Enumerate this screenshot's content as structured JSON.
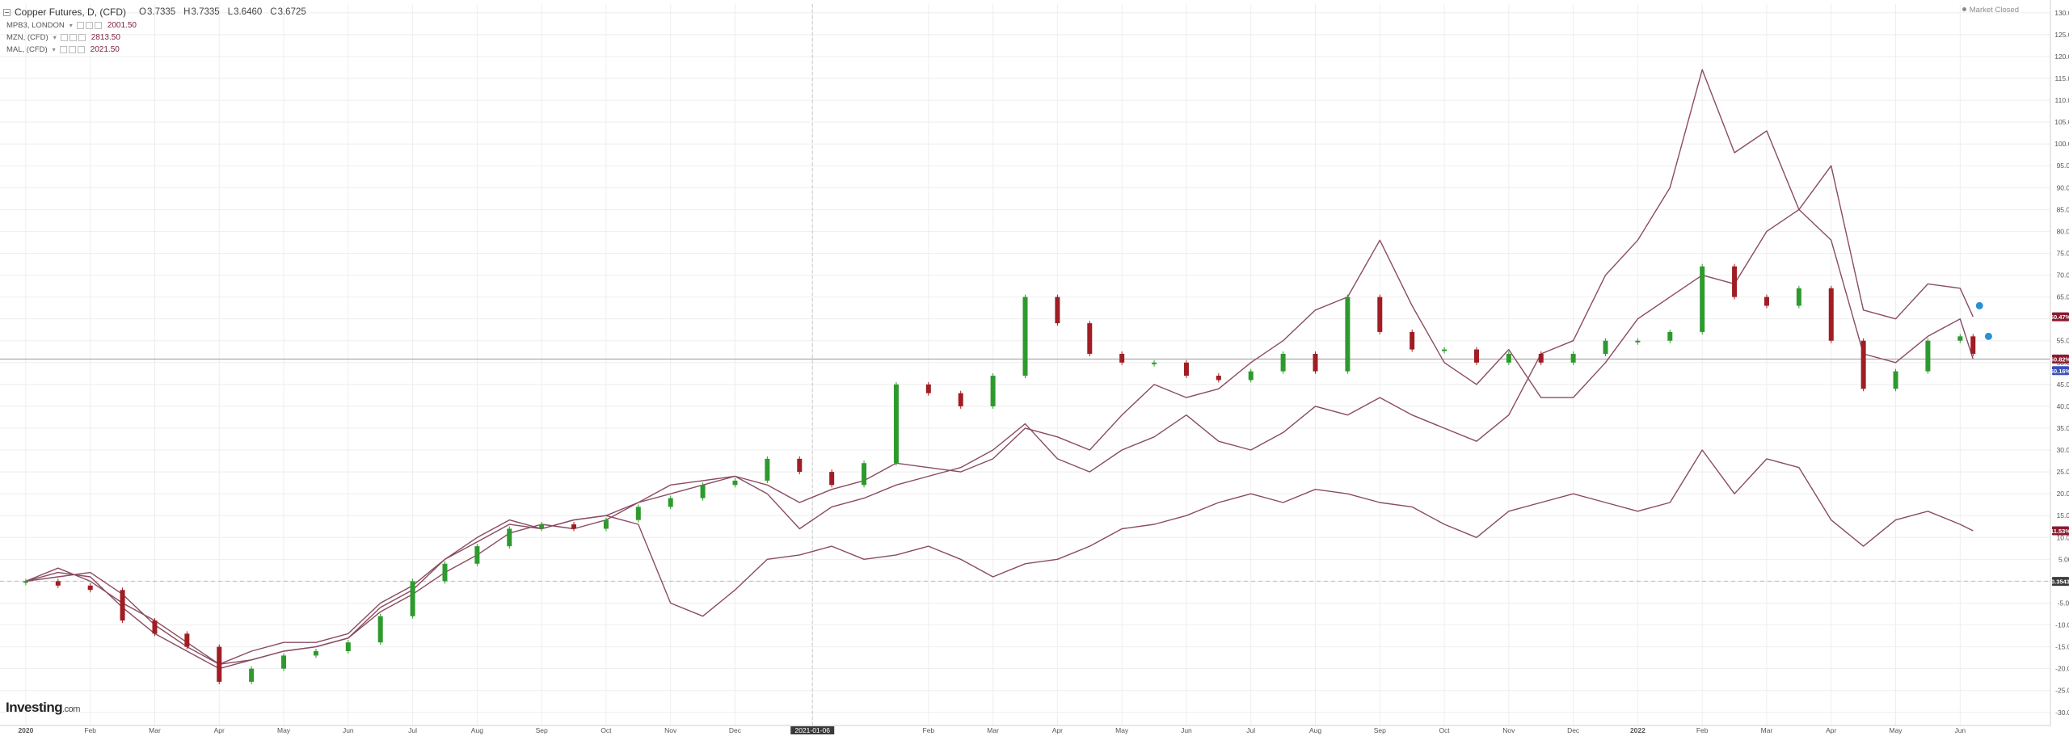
{
  "header": {
    "title": "Copper Futures, D, (CFD)",
    "open_label": "O",
    "open": "3.7335",
    "high_label": "H",
    "high": "3.7335",
    "low_label": "L",
    "low": "3.6460",
    "close_label": "C",
    "close": "3.6725"
  },
  "market_status": "Market Closed",
  "symbols": [
    {
      "name": "MPB3, LONDON",
      "value": "2001.50"
    },
    {
      "name": "MZN, (CFD)",
      "value": "2813.50"
    },
    {
      "name": "MAL, (CFD)",
      "value": "2021.50"
    }
  ],
  "brand": {
    "main": "Investing",
    "suffix": ".com"
  },
  "colors": {
    "up": "#2e9a2e",
    "down": "#a01d24",
    "comparison": "#8a4b62",
    "grid": "#eeeeee",
    "axis_text": "#555555",
    "badge_red": "#8b1a2f",
    "badge_blue": "#3b4fbd",
    "badge_dark": "#3a3a3a",
    "marker": "#2b8fd6"
  },
  "chart_data": {
    "type": "line",
    "title": "Copper Futures, D, (CFD)",
    "y_unit": "percent change",
    "ylim": [
      -33,
      132
    ],
    "y_ticks": [
      "130.00%",
      "125.00%",
      "120.00%",
      "115.00%",
      "110.00%",
      "105.00%",
      "100.00%",
      "95.00%",
      "90.00%",
      "85.00%",
      "80.00%",
      "75.00%",
      "70.00%",
      "65.00%",
      "60.00%",
      "55.00%",
      "50.00%",
      "45.00%",
      "40.00%",
      "35.00%",
      "30.00%",
      "25.00%",
      "20.00%",
      "15.00%",
      "10.00%",
      "5.00%",
      "0.00%",
      "-5.00%",
      "-10.00%",
      "-15.00%",
      "-20.00%",
      "-25.00%",
      "-30.00%"
    ],
    "x_ticks": [
      "2020",
      "Feb",
      "Mar",
      "Apr",
      "May",
      "Jun",
      "Jul",
      "Aug",
      "Sep",
      "Oct",
      "Nov",
      "Dec",
      "2021-01-06",
      "Feb",
      "Mar",
      "Apr",
      "May",
      "Jun",
      "Jul",
      "Aug",
      "Sep",
      "Oct",
      "Nov",
      "Dec",
      "2022",
      "Feb",
      "Mar",
      "Apr",
      "May",
      "Jun"
    ],
    "x_tick_positions": [
      0,
      0.5,
      1,
      1.5,
      2,
      2.5,
      3,
      3.5,
      4,
      4.5,
      5,
      5.5,
      6.1,
      7,
      7.5,
      8,
      8.5,
      9,
      9.5,
      10,
      10.5,
      11,
      11.5,
      12,
      12.5,
      13,
      13.5,
      14,
      14.5,
      15
    ],
    "xlim": [
      -0.2,
      15.7
    ],
    "grid": true,
    "crosshair_x_label": "2021-01-06",
    "right_badges": [
      {
        "value": 60.47,
        "label": "60.47%",
        "color": "#8b1a2f"
      },
      {
        "value": 50.82,
        "label": "50.82%",
        "color": "#8b1a2f"
      },
      {
        "value": 48.16,
        "label": "50.16%",
        "color": "#3b4fbd"
      },
      {
        "value": 11.53,
        "label": "11.53%",
        "color": "#8b1a2f"
      },
      {
        "value": -0.05,
        "label": "0.3543",
        "color": "#3a3a3a"
      }
    ],
    "reference_line": 50.82,
    "zero_line": 0,
    "candles": {
      "name": "Copper Futures",
      "x": [
        0,
        0.25,
        0.5,
        0.75,
        1,
        1.25,
        1.5,
        1.75,
        2,
        2.25,
        2.5,
        2.75,
        3,
        3.25,
        3.5,
        3.75,
        4,
        4.25,
        4.5,
        4.75,
        5,
        5.25,
        5.5,
        5.75,
        6,
        6.25,
        6.5,
        6.75,
        7,
        7.25,
        7.5,
        7.75,
        8,
        8.25,
        8.5,
        8.75,
        9,
        9.25,
        9.5,
        9.75,
        10,
        10.25,
        10.5,
        10.75,
        11,
        11.25,
        11.5,
        11.75,
        12,
        12.25,
        12.5,
        12.75,
        13,
        13.25,
        13.5,
        13.75,
        14,
        14.25,
        14.5,
        14.75,
        15,
        15.1
      ],
      "y": [
        0,
        -1,
        -2,
        -9,
        -12,
        -15,
        -23,
        -20,
        -17,
        -16,
        -14,
        -8,
        0,
        4,
        8,
        12,
        13,
        12,
        14,
        17,
        19,
        22,
        23,
        28,
        25,
        22,
        27,
        45,
        43,
        40,
        47,
        65,
        59,
        52,
        50,
        50,
        47,
        46,
        48,
        52,
        48,
        65,
        57,
        53,
        53,
        50,
        52,
        50,
        52,
        55,
        55,
        57,
        72,
        65,
        63,
        67,
        55,
        44,
        48,
        55,
        56,
        52
      ]
    },
    "series": [
      {
        "name": "MPB3, LONDON",
        "x": [
          0,
          0.25,
          0.5,
          0.75,
          1,
          1.25,
          1.5,
          1.75,
          2,
          2.25,
          2.5,
          2.75,
          3,
          3.25,
          3.5,
          3.75,
          4,
          4.25,
          4.5,
          4.75,
          5,
          5.25,
          5.5,
          5.75,
          6,
          6.25,
          6.5,
          6.75,
          7,
          7.25,
          7.5,
          7.75,
          8,
          8.25,
          8.5,
          8.75,
          9,
          9.25,
          9.5,
          9.75,
          10,
          10.25,
          10.5,
          10.75,
          11,
          11.25,
          11.5,
          11.75,
          12,
          12.25,
          12.5,
          12.75,
          13,
          13.25,
          13.5,
          13.75,
          14,
          14.25,
          14.5,
          14.75,
          15,
          15.1
        ],
        "y": [
          0,
          2,
          1,
          -6,
          -12,
          -16,
          -20,
          -18,
          -16,
          -15,
          -13,
          -6,
          -2,
          5,
          10,
          14,
          12,
          14,
          15,
          13,
          -5,
          -8,
          -2,
          5,
          6,
          8,
          5,
          6,
          8,
          5,
          1,
          4,
          5,
          8,
          12,
          13,
          15,
          18,
          20,
          18,
          21,
          20,
          18,
          17,
          13,
          10,
          16,
          18,
          20,
          18,
          16,
          18,
          30,
          20,
          28,
          26,
          14,
          8,
          14,
          16,
          13,
          11.53
        ]
      },
      {
        "name": "MZN, (CFD)",
        "x": [
          0,
          0.25,
          0.5,
          0.75,
          1,
          1.25,
          1.5,
          1.75,
          2,
          2.25,
          2.5,
          2.75,
          3,
          3.25,
          3.5,
          3.75,
          4,
          4.25,
          4.5,
          4.75,
          5,
          5.25,
          5.5,
          5.75,
          6,
          6.25,
          6.5,
          6.75,
          7,
          7.25,
          7.5,
          7.75,
          8,
          8.25,
          8.5,
          8.75,
          9,
          9.25,
          9.5,
          9.75,
          10,
          10.25,
          10.5,
          10.75,
          11,
          11.25,
          11.5,
          11.75,
          12,
          12.25,
          12.5,
          12.75,
          13,
          13.25,
          13.5,
          13.75,
          14,
          14.25,
          14.5,
          14.75,
          15,
          15.1
        ],
        "y": [
          0,
          3,
          0,
          -5,
          -9,
          -14,
          -19,
          -16,
          -14,
          -14,
          -12,
          -5,
          -1,
          5,
          9,
          13,
          12,
          14,
          15,
          18,
          20,
          22,
          24,
          20,
          12,
          17,
          19,
          22,
          24,
          26,
          30,
          36,
          28,
          25,
          30,
          33,
          38,
          32,
          30,
          34,
          40,
          38,
          42,
          38,
          35,
          32,
          38,
          52,
          55,
          70,
          78,
          90,
          117,
          98,
          103,
          85,
          95,
          62,
          60,
          68,
          67,
          60.47
        ]
      },
      {
        "name": "MAL, (CFD)",
        "x": [
          0,
          0.25,
          0.5,
          0.75,
          1,
          1.25,
          1.5,
          1.75,
          2,
          2.25,
          2.5,
          2.75,
          3,
          3.25,
          3.5,
          3.75,
          4,
          4.25,
          4.5,
          4.75,
          5,
          5.25,
          5.5,
          5.75,
          6,
          6.25,
          6.5,
          6.75,
          7,
          7.25,
          7.5,
          7.75,
          8,
          8.25,
          8.5,
          8.75,
          9,
          9.25,
          9.5,
          9.75,
          10,
          10.25,
          10.5,
          10.75,
          11,
          11.25,
          11.5,
          11.75,
          12,
          12.25,
          12.5,
          12.75,
          13,
          13.25,
          13.5,
          13.75,
          14,
          14.25,
          14.5,
          14.75,
          15,
          15.1
        ],
        "y": [
          0,
          1,
          2,
          -3,
          -10,
          -15,
          -19,
          -18,
          -16,
          -15,
          -13,
          -7,
          -3,
          2,
          6,
          11,
          13,
          12,
          14,
          18,
          22,
          23,
          24,
          22,
          18,
          21,
          23,
          27,
          26,
          25,
          28,
          35,
          33,
          30,
          38,
          45,
          42,
          44,
          50,
          55,
          62,
          65,
          78,
          63,
          50,
          45,
          53,
          42,
          42,
          50,
          60,
          65,
          70,
          68,
          80,
          85,
          78,
          52,
          50,
          56,
          60,
          50.82
        ]
      }
    ]
  }
}
